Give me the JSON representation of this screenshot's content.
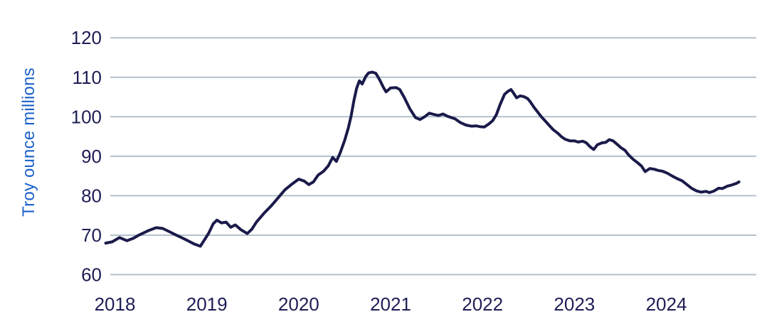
{
  "chart_data": {
    "type": "line",
    "title": "",
    "ylabel": "Troy ounce millions",
    "xlabel": "",
    "ylim": [
      60,
      120
    ],
    "yticks": [
      60,
      70,
      80,
      90,
      100,
      110,
      120
    ],
    "xticks": [
      2018,
      2019,
      2020,
      2021,
      2022,
      2023,
      2024
    ],
    "grid": "horizontal-only",
    "legend_position": "none",
    "x_range": [
      2017.9,
      2024.82
    ],
    "points": [
      [
        2017.9,
        68.0
      ],
      [
        2017.97,
        68.3
      ],
      [
        2018.05,
        69.4
      ],
      [
        2018.13,
        68.6
      ],
      [
        2018.2,
        69.2
      ],
      [
        2018.26,
        70.0
      ],
      [
        2018.36,
        71.1
      ],
      [
        2018.45,
        71.9
      ],
      [
        2018.52,
        71.7
      ],
      [
        2018.6,
        70.8
      ],
      [
        2018.65,
        70.2
      ],
      [
        2018.75,
        69.1
      ],
      [
        2018.86,
        67.8
      ],
      [
        2018.93,
        67.2
      ],
      [
        2018.96,
        68.3
      ],
      [
        2019.02,
        70.5
      ],
      [
        2019.07,
        72.9
      ],
      [
        2019.11,
        73.8
      ],
      [
        2019.16,
        73.1
      ],
      [
        2019.21,
        73.3
      ],
      [
        2019.26,
        72.0
      ],
      [
        2019.31,
        72.6
      ],
      [
        2019.37,
        71.4
      ],
      [
        2019.44,
        70.4
      ],
      [
        2019.49,
        71.5
      ],
      [
        2019.54,
        73.3
      ],
      [
        2019.62,
        75.5
      ],
      [
        2019.7,
        77.4
      ],
      [
        2019.77,
        79.3
      ],
      [
        2019.85,
        81.5
      ],
      [
        2019.93,
        83.0
      ],
      [
        2020.0,
        84.2
      ],
      [
        2020.06,
        83.7
      ],
      [
        2020.11,
        82.8
      ],
      [
        2020.16,
        83.5
      ],
      [
        2020.21,
        85.2
      ],
      [
        2020.27,
        86.2
      ],
      [
        2020.32,
        87.5
      ],
      [
        2020.37,
        89.7
      ],
      [
        2020.41,
        88.7
      ],
      [
        2020.45,
        90.8
      ],
      [
        2020.5,
        94.0
      ],
      [
        2020.54,
        97.2
      ],
      [
        2020.57,
        100.2
      ],
      [
        2020.6,
        104.0
      ],
      [
        2020.63,
        107.2
      ],
      [
        2020.66,
        109.1
      ],
      [
        2020.69,
        108.3
      ],
      [
        2020.73,
        110.2
      ],
      [
        2020.76,
        111.1
      ],
      [
        2020.8,
        111.3
      ],
      [
        2020.84,
        111.0
      ],
      [
        2020.88,
        109.4
      ],
      [
        2020.92,
        107.5
      ],
      [
        2020.95,
        106.3
      ],
      [
        2021.0,
        107.3
      ],
      [
        2021.06,
        107.4
      ],
      [
        2021.1,
        106.9
      ],
      [
        2021.15,
        104.8
      ],
      [
        2021.21,
        102.0
      ],
      [
        2021.27,
        99.8
      ],
      [
        2021.32,
        99.3
      ],
      [
        2021.37,
        100.0
      ],
      [
        2021.42,
        100.9
      ],
      [
        2021.47,
        100.6
      ],
      [
        2021.52,
        100.3
      ],
      [
        2021.57,
        100.7
      ],
      [
        2021.62,
        100.1
      ],
      [
        2021.7,
        99.5
      ],
      [
        2021.76,
        98.5
      ],
      [
        2021.82,
        97.9
      ],
      [
        2021.88,
        97.6
      ],
      [
        2021.93,
        97.7
      ],
      [
        2021.97,
        97.5
      ],
      [
        2022.02,
        97.4
      ],
      [
        2022.07,
        98.2
      ],
      [
        2022.11,
        99.0
      ],
      [
        2022.15,
        100.5
      ],
      [
        2022.19,
        103.0
      ],
      [
        2022.24,
        105.7
      ],
      [
        2022.28,
        106.5
      ],
      [
        2022.31,
        106.9
      ],
      [
        2022.34,
        105.9
      ],
      [
        2022.37,
        104.8
      ],
      [
        2022.41,
        105.3
      ],
      [
        2022.45,
        105.1
      ],
      [
        2022.49,
        104.6
      ],
      [
        2022.52,
        103.8
      ],
      [
        2022.56,
        102.4
      ],
      [
        2022.6,
        101.2
      ],
      [
        2022.64,
        100.0
      ],
      [
        2022.68,
        99.0
      ],
      [
        2022.73,
        97.7
      ],
      [
        2022.77,
        96.7
      ],
      [
        2022.82,
        95.8
      ],
      [
        2022.86,
        94.9
      ],
      [
        2022.9,
        94.3
      ],
      [
        2022.95,
        93.9
      ],
      [
        2023.0,
        93.9
      ],
      [
        2023.04,
        93.6
      ],
      [
        2023.09,
        93.8
      ],
      [
        2023.13,
        93.4
      ],
      [
        2023.17,
        92.4
      ],
      [
        2023.21,
        91.7
      ],
      [
        2023.25,
        92.9
      ],
      [
        2023.3,
        93.4
      ],
      [
        2023.34,
        93.5
      ],
      [
        2023.38,
        94.2
      ],
      [
        2023.42,
        93.9
      ],
      [
        2023.47,
        92.9
      ],
      [
        2023.51,
        92.1
      ],
      [
        2023.55,
        91.5
      ],
      [
        2023.59,
        90.3
      ],
      [
        2023.64,
        89.2
      ],
      [
        2023.69,
        88.3
      ],
      [
        2023.73,
        87.5
      ],
      [
        2023.77,
        86.1
      ],
      [
        2023.82,
        86.9
      ],
      [
        2023.87,
        86.7
      ],
      [
        2023.91,
        86.4
      ],
      [
        2023.96,
        86.2
      ],
      [
        2024.01,
        85.7
      ],
      [
        2024.07,
        84.9
      ],
      [
        2024.12,
        84.3
      ],
      [
        2024.17,
        83.8
      ],
      [
        2024.22,
        82.9
      ],
      [
        2024.28,
        81.8
      ],
      [
        2024.33,
        81.2
      ],
      [
        2024.38,
        80.9
      ],
      [
        2024.43,
        81.1
      ],
      [
        2024.47,
        80.8
      ],
      [
        2024.52,
        81.2
      ],
      [
        2024.57,
        81.9
      ],
      [
        2024.61,
        81.8
      ],
      [
        2024.66,
        82.4
      ],
      [
        2024.71,
        82.7
      ],
      [
        2024.76,
        83.1
      ],
      [
        2024.79,
        83.5
      ]
    ]
  },
  "colors": {
    "line": "#1A1A4A",
    "grid": "#B3C0CC",
    "tick_label": "#1E1E55",
    "axis_title": "#1B61CA",
    "background": "#FFFFFF"
  }
}
